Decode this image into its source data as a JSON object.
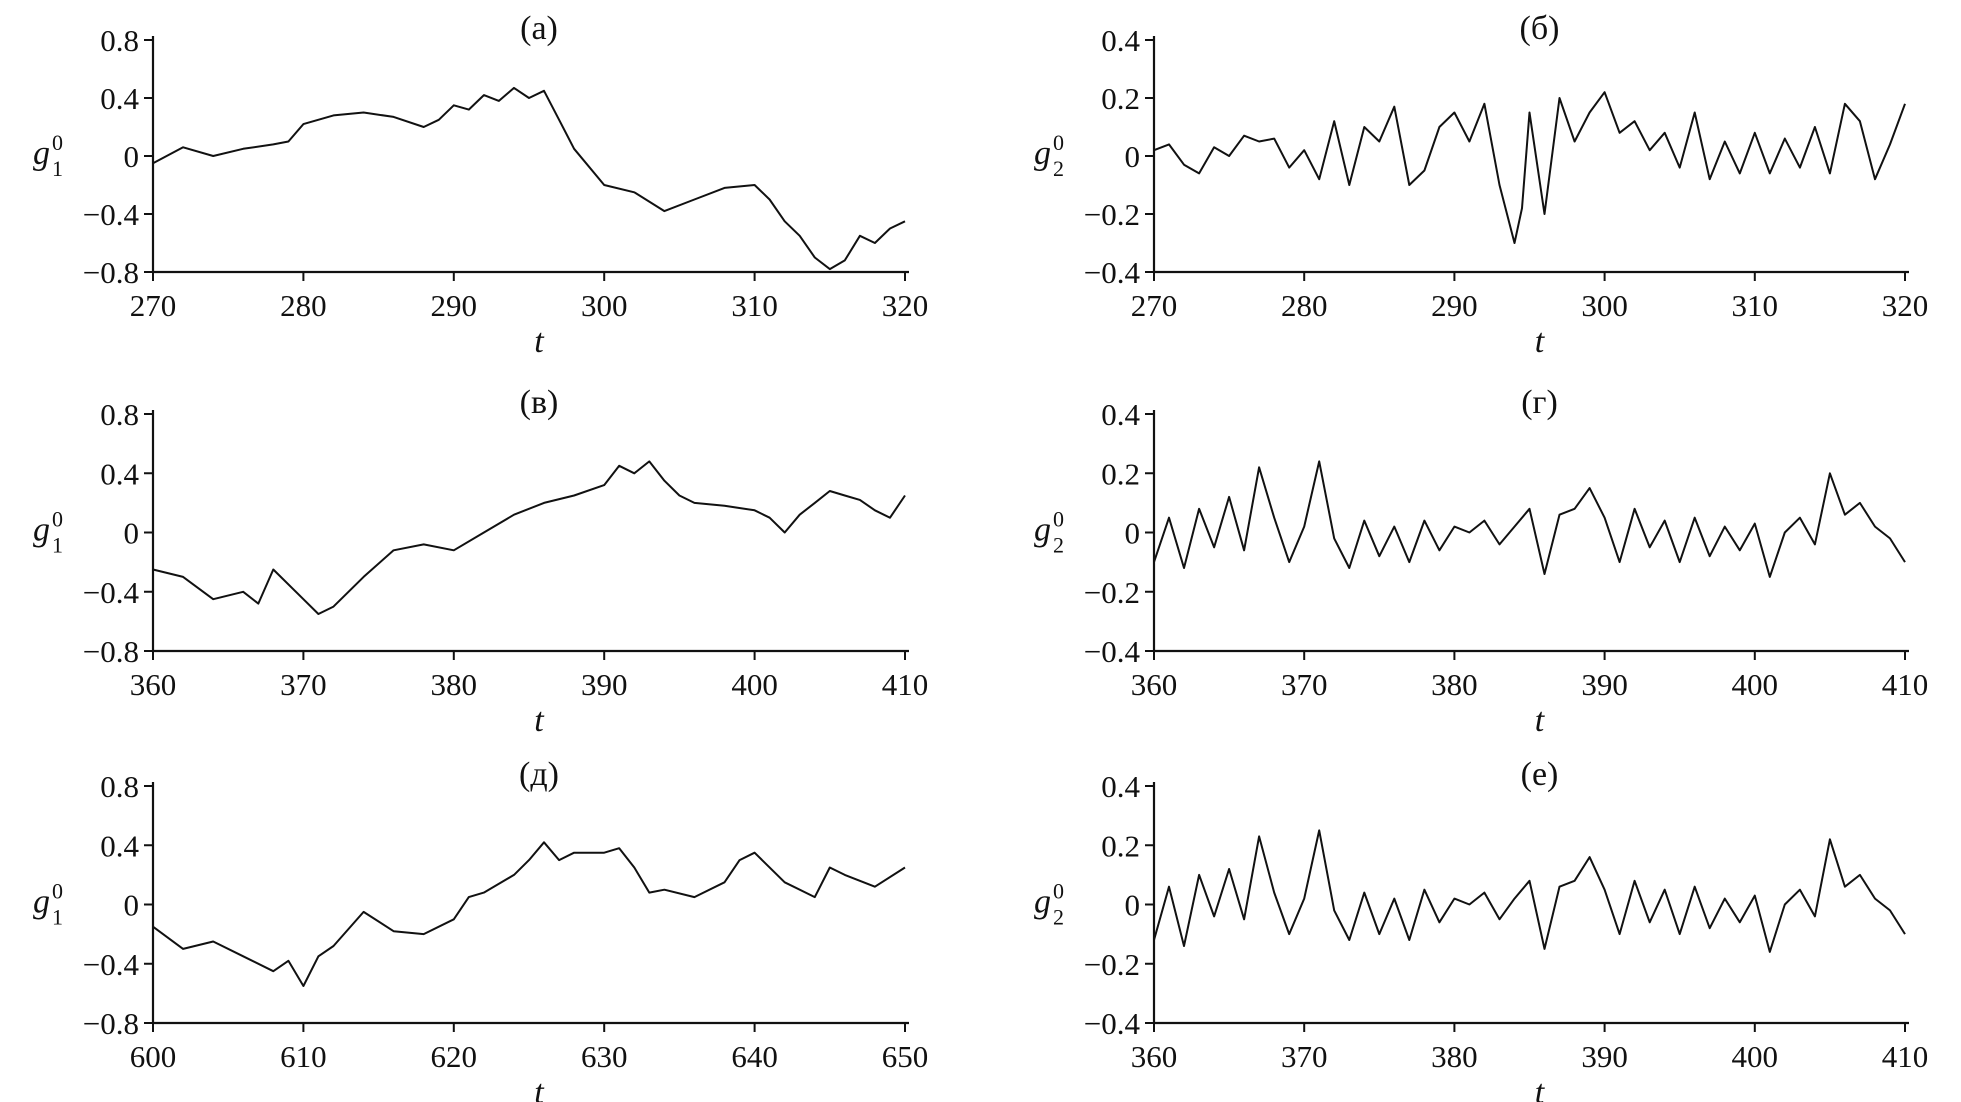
{
  "chart_data": [
    {
      "type": "line",
      "label": "(а)",
      "xlabel": "t",
      "ylabel": {
        "var": "g",
        "sub": "1",
        "sup": "0"
      },
      "xlim": [
        270,
        320
      ],
      "ylim": [
        -0.8,
        0.8
      ],
      "xticks": [
        270,
        280,
        290,
        300,
        310,
        320
      ],
      "yticks": [
        -0.8,
        -0.4,
        0,
        0.4,
        0.8
      ],
      "ytick_labels": [
        "−0.8",
        "−0.4",
        "0",
        "0.4",
        "0.8"
      ],
      "grid": false,
      "series": [
        {
          "x": [
            270,
            272,
            274,
            276,
            278,
            279,
            280,
            282,
            284,
            286,
            288,
            289,
            290,
            291,
            292,
            293,
            294,
            295,
            296,
            297,
            298,
            300,
            302,
            304,
            306,
            308,
            310,
            311,
            312,
            313,
            314,
            315,
            316,
            317,
            318,
            319,
            320
          ],
          "y": [
            -0.05,
            0.06,
            0.0,
            0.05,
            0.08,
            0.1,
            0.22,
            0.28,
            0.3,
            0.27,
            0.2,
            0.25,
            0.35,
            0.32,
            0.42,
            0.38,
            0.47,
            0.4,
            0.45,
            0.25,
            0.05,
            -0.2,
            -0.25,
            -0.38,
            -0.3,
            -0.22,
            -0.2,
            -0.3,
            -0.45,
            -0.55,
            -0.7,
            -0.78,
            -0.72,
            -0.55,
            -0.6,
            -0.5,
            -0.45
          ]
        }
      ]
    },
    {
      "type": "line",
      "label": "(б)",
      "xlabel": "t",
      "ylabel": {
        "var": "g",
        "sub": "2",
        "sup": "0"
      },
      "xlim": [
        270,
        320
      ],
      "ylim": [
        -0.4,
        0.4
      ],
      "xticks": [
        270,
        280,
        290,
        300,
        310,
        320
      ],
      "yticks": [
        -0.4,
        -0.2,
        0,
        0.2,
        0.4
      ],
      "ytick_labels": [
        "−0.4",
        "−0.2",
        "0",
        "0.2",
        "0.4"
      ],
      "grid": false,
      "series": [
        {
          "x": [
            270,
            271,
            272,
            273,
            274,
            275,
            276,
            277,
            278,
            279,
            280,
            281,
            282,
            283,
            284,
            285,
            286,
            287,
            288,
            289,
            290,
            291,
            292,
            293,
            294,
            294.5,
            295,
            296,
            297,
            298,
            299,
            300,
            301,
            302,
            303,
            304,
            305,
            306,
            307,
            308,
            309,
            310,
            311,
            312,
            313,
            314,
            315,
            316,
            317,
            318,
            319,
            320
          ],
          "y": [
            0.02,
            0.04,
            -0.03,
            -0.06,
            0.03,
            0.0,
            0.07,
            0.05,
            0.06,
            -0.04,
            0.02,
            -0.08,
            0.12,
            -0.1,
            0.1,
            0.05,
            0.17,
            -0.1,
            -0.05,
            0.1,
            0.15,
            0.05,
            0.18,
            -0.1,
            -0.3,
            -0.18,
            0.15,
            -0.2,
            0.2,
            0.05,
            0.15,
            0.22,
            0.08,
            0.12,
            0.02,
            0.08,
            -0.04,
            0.15,
            -0.08,
            0.05,
            -0.06,
            0.08,
            -0.06,
            0.06,
            -0.04,
            0.1,
            -0.06,
            0.18,
            0.12,
            -0.08,
            0.04,
            0.18
          ]
        }
      ]
    },
    {
      "type": "line",
      "label": "(в)",
      "xlabel": "t",
      "ylabel": {
        "var": "g",
        "sub": "1",
        "sup": "0"
      },
      "xlim": [
        360,
        410
      ],
      "ylim": [
        -0.8,
        0.8
      ],
      "xticks": [
        360,
        370,
        380,
        390,
        400,
        410
      ],
      "yticks": [
        -0.8,
        -0.4,
        0,
        0.4,
        0.8
      ],
      "ytick_labels": [
        "−0.8",
        "−0.4",
        "0",
        "0.4",
        "0.8"
      ],
      "grid": false,
      "series": [
        {
          "x": [
            360,
            362,
            364,
            366,
            367,
            368,
            370,
            371,
            372,
            374,
            376,
            378,
            380,
            382,
            384,
            386,
            388,
            390,
            391,
            392,
            393,
            394,
            395,
            396,
            398,
            400,
            401,
            402,
            403,
            404,
            405,
            406,
            407,
            408,
            409,
            410
          ],
          "y": [
            -0.25,
            -0.3,
            -0.45,
            -0.4,
            -0.48,
            -0.25,
            -0.45,
            -0.55,
            -0.5,
            -0.3,
            -0.12,
            -0.08,
            -0.12,
            0.0,
            0.12,
            0.2,
            0.25,
            0.32,
            0.45,
            0.4,
            0.48,
            0.35,
            0.25,
            0.2,
            0.18,
            0.15,
            0.1,
            0.0,
            0.12,
            0.2,
            0.28,
            0.25,
            0.22,
            0.15,
            0.1,
            0.25
          ]
        }
      ]
    },
    {
      "type": "line",
      "label": "(г)",
      "xlabel": "t",
      "ylabel": {
        "var": "g",
        "sub": "2",
        "sup": "0"
      },
      "xlim": [
        360,
        410
      ],
      "ylim": [
        -0.4,
        0.4
      ],
      "xticks": [
        360,
        370,
        380,
        390,
        400,
        410
      ],
      "yticks": [
        -0.4,
        -0.2,
        0,
        0.2,
        0.4
      ],
      "ytick_labels": [
        "−0.4",
        "−0.2",
        "0",
        "0.2",
        "0.4"
      ],
      "grid": false,
      "series": [
        {
          "x": [
            360,
            361,
            362,
            363,
            364,
            365,
            366,
            367,
            368,
            369,
            370,
            371,
            372,
            373,
            374,
            375,
            376,
            377,
            378,
            379,
            380,
            381,
            382,
            383,
            384,
            385,
            386,
            387,
            388,
            389,
            390,
            391,
            392,
            393,
            394,
            395,
            396,
            397,
            398,
            399,
            400,
            401,
            402,
            403,
            404,
            405,
            406,
            407,
            408,
            409,
            410
          ],
          "y": [
            -0.1,
            0.05,
            -0.12,
            0.08,
            -0.05,
            0.12,
            -0.06,
            0.22,
            0.05,
            -0.1,
            0.02,
            0.24,
            -0.02,
            -0.12,
            0.04,
            -0.08,
            0.02,
            -0.1,
            0.04,
            -0.06,
            0.02,
            0.0,
            0.04,
            -0.04,
            0.02,
            0.08,
            -0.14,
            0.06,
            0.08,
            0.15,
            0.05,
            -0.1,
            0.08,
            -0.05,
            0.04,
            -0.1,
            0.05,
            -0.08,
            0.02,
            -0.06,
            0.03,
            -0.15,
            0.0,
            0.05,
            -0.04,
            0.2,
            0.06,
            0.1,
            0.02,
            -0.02,
            -0.1
          ]
        }
      ]
    },
    {
      "type": "line",
      "label": "(д)",
      "xlabel": "t",
      "ylabel": {
        "var": "g",
        "sub": "1",
        "sup": "0"
      },
      "xlim": [
        600,
        650
      ],
      "ylim": [
        -0.8,
        0.8
      ],
      "xticks": [
        600,
        610,
        620,
        630,
        640,
        650
      ],
      "yticks": [
        -0.8,
        -0.4,
        0,
        0.4,
        0.8
      ],
      "ytick_labels": [
        "−0.8",
        "−0.4",
        "0",
        "0.4",
        "0.8"
      ],
      "grid": false,
      "series": [
        {
          "x": [
            600,
            602,
            604,
            606,
            608,
            609,
            610,
            611,
            612,
            614,
            616,
            618,
            620,
            621,
            622,
            624,
            625,
            626,
            627,
            628,
            630,
            631,
            632,
            633,
            634,
            636,
            638,
            639,
            640,
            642,
            644,
            645,
            646,
            648,
            650
          ],
          "y": [
            -0.15,
            -0.3,
            -0.25,
            -0.35,
            -0.45,
            -0.38,
            -0.55,
            -0.35,
            -0.28,
            -0.05,
            -0.18,
            -0.2,
            -0.1,
            0.05,
            0.08,
            0.2,
            0.3,
            0.42,
            0.3,
            0.35,
            0.35,
            0.38,
            0.25,
            0.08,
            0.1,
            0.05,
            0.15,
            0.3,
            0.35,
            0.15,
            0.05,
            0.25,
            0.2,
            0.12,
            0.25
          ]
        }
      ]
    },
    {
      "type": "line",
      "label": "(е)",
      "xlabel": "t",
      "ylabel": {
        "var": "g",
        "sub": "2",
        "sup": "0"
      },
      "xlim": [
        360,
        410
      ],
      "ylim": [
        -0.4,
        0.4
      ],
      "xticks": [
        360,
        370,
        380,
        390,
        400,
        410
      ],
      "yticks": [
        -0.4,
        -0.2,
        0,
        0.2,
        0.4
      ],
      "ytick_labels": [
        "−0.4",
        "−0.2",
        "0",
        "0.2",
        "0.4"
      ],
      "grid": false,
      "series": [
        {
          "x": [
            360,
            361,
            362,
            363,
            364,
            365,
            366,
            367,
            368,
            369,
            370,
            371,
            372,
            373,
            374,
            375,
            376,
            377,
            378,
            379,
            380,
            381,
            382,
            383,
            384,
            385,
            386,
            387,
            388,
            389,
            390,
            391,
            392,
            393,
            394,
            395,
            396,
            397,
            398,
            399,
            400,
            401,
            402,
            403,
            404,
            405,
            406,
            407,
            408,
            409,
            410
          ],
          "y": [
            -0.12,
            0.06,
            -0.14,
            0.1,
            -0.04,
            0.12,
            -0.05,
            0.23,
            0.04,
            -0.1,
            0.02,
            0.25,
            -0.02,
            -0.12,
            0.04,
            -0.1,
            0.02,
            -0.12,
            0.05,
            -0.06,
            0.02,
            0.0,
            0.04,
            -0.05,
            0.02,
            0.08,
            -0.15,
            0.06,
            0.08,
            0.16,
            0.05,
            -0.1,
            0.08,
            -0.06,
            0.05,
            -0.1,
            0.06,
            -0.08,
            0.02,
            -0.06,
            0.03,
            -0.16,
            0.0,
            0.05,
            -0.04,
            0.22,
            0.06,
            0.1,
            0.02,
            -0.02,
            -0.1
          ]
        }
      ]
    }
  ]
}
